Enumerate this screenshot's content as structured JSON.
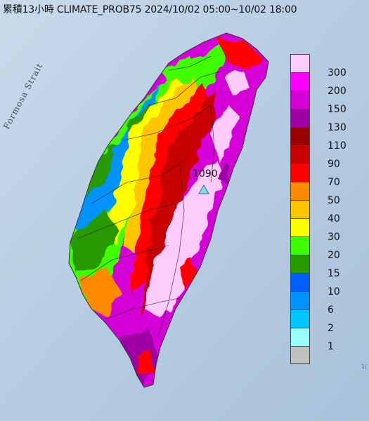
{
  "title": "累積13小時 CLIMATE_PROB75 2024/10/02 05:00~10/02 18:00",
  "strait_label": "Formosa Strait",
  "max_station_value": "1090",
  "corner_text": "1(",
  "legend": {
    "labels": [
      "300",
      "200",
      "150",
      "130",
      "110",
      "90",
      "70",
      "50",
      "40",
      "30",
      "20",
      "15",
      "10",
      "6",
      "2",
      "1"
    ],
    "colors": [
      "#fecbfd",
      "#fe00fd",
      "#d600d6",
      "#9e00a6",
      "#9b0000",
      "#c90000",
      "#fe0000",
      "#fe8a00",
      "#fdc600",
      "#fffe00",
      "#3ffd00",
      "#279a00",
      "#0060fd",
      "#0093fd",
      "#00c4fd",
      "#9afefe",
      "#c1c1c1"
    ]
  }
}
